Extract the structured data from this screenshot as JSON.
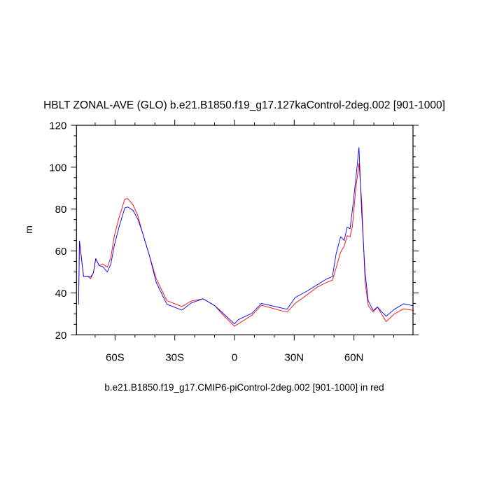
{
  "chart_data": {
    "type": "line",
    "title": "HBLT ZONAL-AVE (GLO) b.e21.B1850.f19_g17.127kaControl-2deg.002 [901-1000]",
    "xlabel": "b.e21.B1850.f19_g17.CMIP6-piControl-2deg.002 [901-1000] in red",
    "ylabel": "m",
    "xlim": [
      -79.5,
      90
    ],
    "ylim": [
      20,
      120
    ],
    "x_ticks": [
      -60,
      -30,
      0,
      30,
      60
    ],
    "x_tick_labels": [
      "60S",
      "30S",
      "0",
      "30N",
      "60N"
    ],
    "y_ticks": [
      20,
      40,
      60,
      80,
      100,
      120
    ],
    "y_tick_labels": [
      "20",
      "40",
      "60",
      "80",
      "100",
      "120"
    ],
    "grid": false,
    "series": [
      {
        "color": "#0000ff",
        "x": [
          -78.3,
          -77.9,
          -75.8,
          -73.8,
          -72.3,
          -70.9,
          -69.7,
          -68.0,
          -66.2,
          -63.9,
          -62.1,
          -60.4,
          -58.0,
          -55.1,
          -53.6,
          -51.0,
          -48.6,
          -46.3,
          -42.8,
          -39.3,
          -34.0,
          -26.4,
          -21.7,
          -15.8,
          -9.9,
          -5.2,
          0,
          1.8,
          8.8,
          13.5,
          26.4,
          30.5,
          36.9,
          41.6,
          46.3,
          49.2,
          51.0,
          53.3,
          55.1,
          56.6,
          58.0,
          59.2,
          60.9,
          62.5,
          63.9,
          65.6,
          67.2,
          69.7,
          71.8,
          73.8,
          76.2,
          80.3,
          85.0,
          89.7
        ],
        "y": [
          34.4,
          64.8,
          47.8,
          48.0,
          47.5,
          49.6,
          56.4,
          53.0,
          52.5,
          50.0,
          53.8,
          62.5,
          71.4,
          80.6,
          81.0,
          79.4,
          75.3,
          69.0,
          58.0,
          45.0,
          34.6,
          31.8,
          35.2,
          37.2,
          33.9,
          29.8,
          25.2,
          27.2,
          30.3,
          35.0,
          32.2,
          37.8,
          41.1,
          43.9,
          46.7,
          47.8,
          58.4,
          66.8,
          65.0,
          71.5,
          70.6,
          79.5,
          94.0,
          109.4,
          78.4,
          49.4,
          36.1,
          31.6,
          33.3,
          31.1,
          28.9,
          32.2,
          34.8,
          33.9
        ]
      },
      {
        "color": "#ff0000",
        "x": [
          -78.3,
          -77.9,
          -75.8,
          -73.8,
          -72.3,
          -70.9,
          -69.7,
          -68.0,
          -66.2,
          -63.9,
          -62.1,
          -60.4,
          -58.0,
          -55.1,
          -53.6,
          -51.0,
          -48.6,
          -46.3,
          -42.8,
          -39.3,
          -34.0,
          -26.4,
          -21.7,
          -15.8,
          -9.9,
          -5.2,
          0,
          1.8,
          8.8,
          13.5,
          26.4,
          30.5,
          36.9,
          41.6,
          46.3,
          49.2,
          51.0,
          53.3,
          55.1,
          56.6,
          58.0,
          59.2,
          60.9,
          62.5,
          63.9,
          65.6,
          67.2,
          69.7,
          71.8,
          73.8,
          76.2,
          80.3,
          85.0,
          89.7
        ],
        "y": [
          36.0,
          64.8,
          47.8,
          48.0,
          46.8,
          49.6,
          56.4,
          53.0,
          53.8,
          52.3,
          57.0,
          67.0,
          75.9,
          84.8,
          85.0,
          82.0,
          77.0,
          69.0,
          58.0,
          46.8,
          36.3,
          33.5,
          36.1,
          37.2,
          33.9,
          29.0,
          24.1,
          25.2,
          29.4,
          34.1,
          30.8,
          35.0,
          39.4,
          42.8,
          45.0,
          46.1,
          51.7,
          59.5,
          62.3,
          67.3,
          66.7,
          71.7,
          89.5,
          101.8,
          83.9,
          45.0,
          33.9,
          30.8,
          33.3,
          30.0,
          26.3,
          30.0,
          32.4,
          31.7
        ]
      }
    ]
  }
}
